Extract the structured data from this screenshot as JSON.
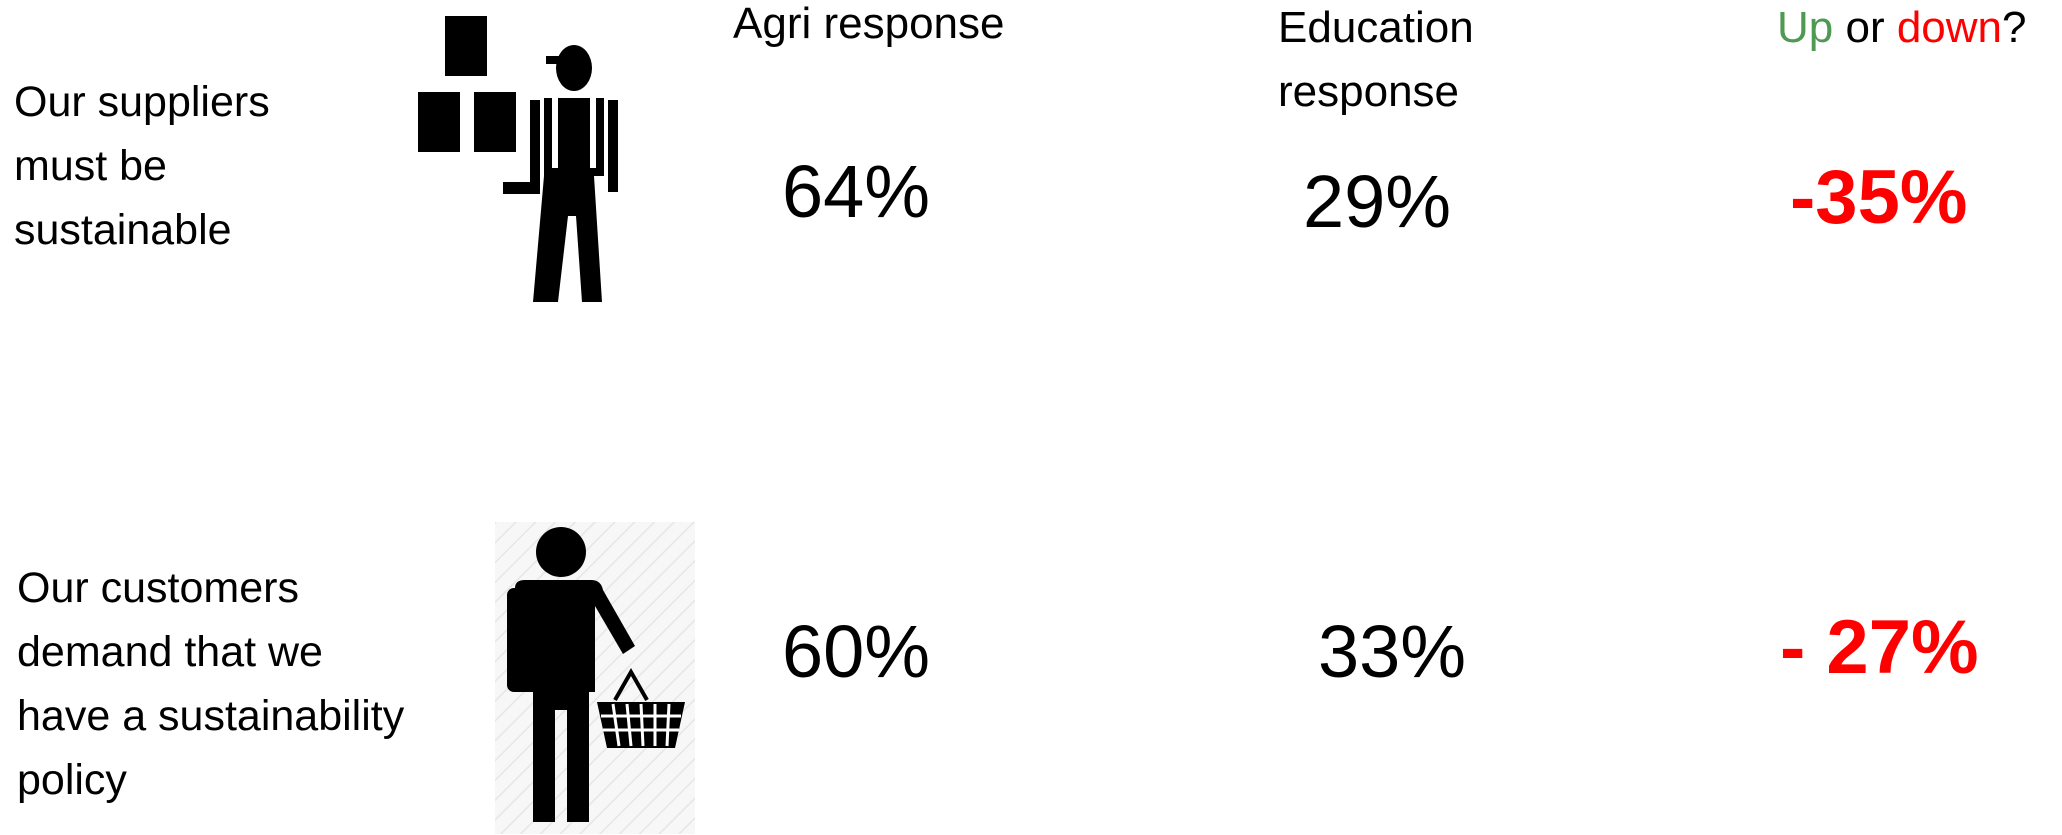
{
  "headers": {
    "agri": "Agri response",
    "education_line1": "Education",
    "education_line2": "response",
    "updown": {
      "up": "Up",
      "or": " or ",
      "down": "down",
      "q": "?"
    }
  },
  "rows": [
    {
      "label_lines": [
        "Our suppliers",
        "must be",
        "sustainable"
      ],
      "agri": "64%",
      "education": "29%",
      "change": "-35%",
      "icon": "supplier-worker-icon"
    },
    {
      "label_lines": [
        "Our customers",
        "demand that we",
        "have a sustainability",
        "policy"
      ],
      "agri": "60%",
      "education": "33%",
      "change": "- 27%",
      "icon": "shopper-basket-icon"
    }
  ],
  "colors": {
    "up": "#4e9a52",
    "down": "#ff0000",
    "text": "#000000"
  }
}
